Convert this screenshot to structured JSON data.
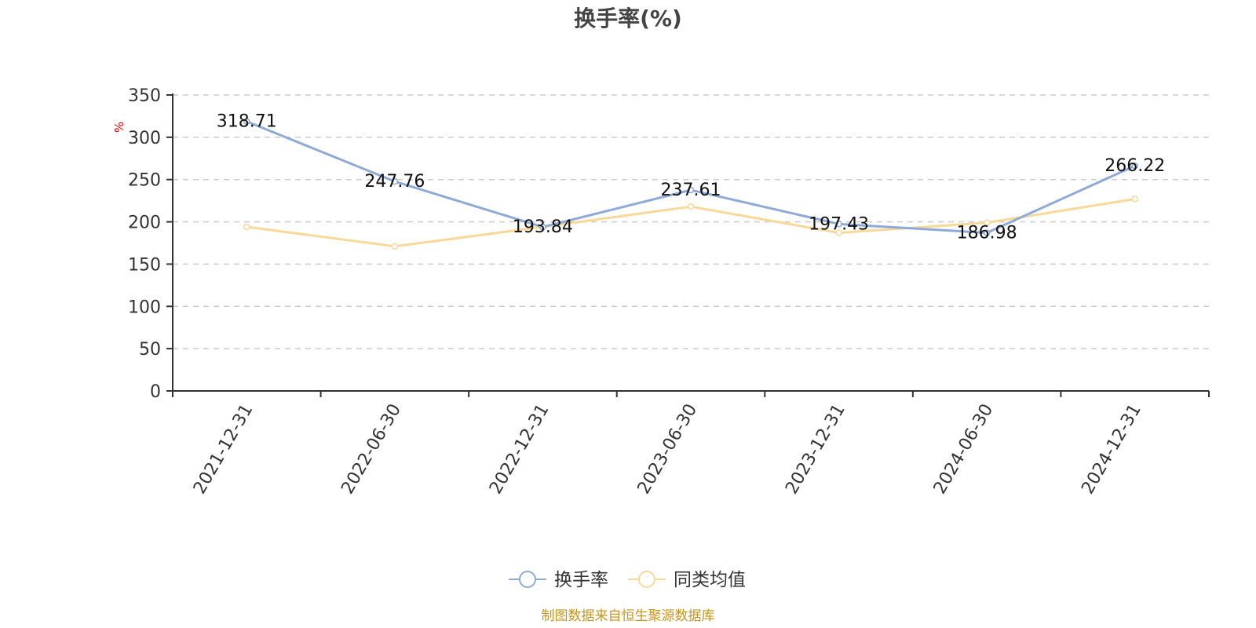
{
  "chart_data": {
    "type": "line",
    "title": "换手率(%)",
    "ylabel": "%",
    "xlabel": "",
    "categories": [
      "2021-12-31",
      "2022-06-30",
      "2022-12-31",
      "2023-06-30",
      "2023-12-31",
      "2024-06-30",
      "2024-12-31"
    ],
    "ylim": [
      0,
      350
    ],
    "yticks": [
      0,
      50,
      100,
      150,
      200,
      250,
      300,
      350
    ],
    "grid": true,
    "legend_position": "bottom",
    "series": [
      {
        "name": "换手率",
        "color": "#8eaad8",
        "values": [
          318.71,
          247.76,
          193.84,
          237.61,
          197.43,
          186.98,
          266.22
        ],
        "labels": [
          "318.71",
          "247.76",
          "193.84",
          "237.61",
          "197.43",
          "186.98",
          "266.22"
        ]
      },
      {
        "name": "同类均值",
        "color": "#fad898",
        "values": [
          194,
          171,
          194,
          218,
          187,
          199,
          227
        ]
      }
    ],
    "source": "制图数据来自恒生聚源数据库"
  }
}
